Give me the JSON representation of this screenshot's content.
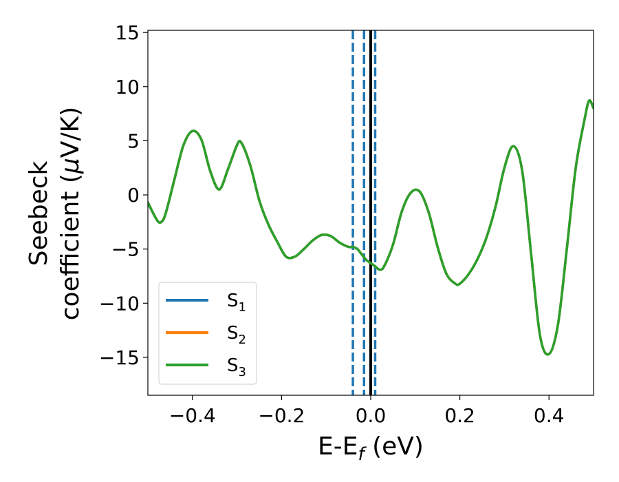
{
  "chart_data": {
    "type": "line",
    "xlabel": "E-E_f (eV)",
    "xlabel_main": "E-E",
    "xlabel_sub": "f",
    "xlabel_tail": " (eV)",
    "ylabel_line1": "Seebeck",
    "ylabel_line2_pre": "coefficient  (",
    "ylabel_mu": "μ",
    "ylabel_line2_post": "V/K)",
    "xlim": [
      -0.5,
      0.5
    ],
    "ylim": [
      -18.5,
      15.2
    ],
    "xticks": [
      -0.4,
      -0.2,
      0.0,
      0.2,
      0.4
    ],
    "xtick_labels": [
      "−0.4",
      "−0.2",
      "0.0",
      "0.2",
      "0.4"
    ],
    "yticks": [
      -15,
      -10,
      -5,
      0,
      5,
      10,
      15
    ],
    "ytick_labels": [
      "−15",
      "−10",
      "−5",
      "0",
      "5",
      "10",
      "15"
    ],
    "grid": false,
    "legend_position": "lower-left",
    "series": [
      {
        "name": "S1",
        "name_main": "S",
        "name_sub": "1",
        "color": "#1f77b4",
        "x": [
          -0.5,
          -0.48,
          -0.47,
          -0.46,
          -0.44,
          -0.42,
          -0.4,
          -0.38,
          -0.36,
          -0.34,
          -0.32,
          -0.3,
          -0.29,
          -0.27,
          -0.25,
          -0.23,
          -0.21,
          -0.19,
          -0.17,
          -0.15,
          -0.13,
          -0.11,
          -0.09,
          -0.07,
          -0.05,
          -0.04,
          -0.03,
          -0.02,
          -0.01,
          0.0,
          0.01,
          0.02,
          0.03,
          0.05,
          0.07,
          0.09,
          0.11,
          0.13,
          0.15,
          0.17,
          0.19,
          0.2,
          0.22,
          0.24,
          0.26,
          0.28,
          0.3,
          0.32,
          0.34,
          0.36,
          0.38,
          0.4,
          0.42,
          0.44,
          0.46,
          0.48,
          0.49,
          0.5
        ],
        "y": [
          -0.7,
          -2.3,
          -2.5,
          -1.7,
          1.5,
          4.6,
          5.9,
          5.1,
          2.2,
          0.5,
          2.4,
          4.6,
          4.8,
          2.7,
          -0.5,
          -2.7,
          -4.3,
          -5.7,
          -5.7,
          -5.0,
          -4.2,
          -3.7,
          -3.8,
          -4.4,
          -4.8,
          -4.8,
          -5.0,
          -5.5,
          -6.0,
          -6.3,
          -6.6,
          -6.9,
          -6.6,
          -4.6,
          -1.5,
          0.2,
          0.3,
          -1.6,
          -4.8,
          -7.3,
          -8.2,
          -8.2,
          -7.3,
          -5.9,
          -3.9,
          -1.1,
          2.5,
          4.5,
          2.2,
          -5.5,
          -13.0,
          -14.7,
          -12.0,
          -5.0,
          2.5,
          7.0,
          8.7,
          8.0
        ]
      },
      {
        "name": "S2",
        "name_main": "S",
        "name_sub": "2",
        "color": "#ff7f0e",
        "x": [
          -0.5,
          -0.48,
          -0.47,
          -0.46,
          -0.44,
          -0.42,
          -0.4,
          -0.38,
          -0.36,
          -0.34,
          -0.32,
          -0.3,
          -0.29,
          -0.27,
          -0.25,
          -0.23,
          -0.21,
          -0.19,
          -0.17,
          -0.15,
          -0.13,
          -0.11,
          -0.09,
          -0.07,
          -0.05,
          -0.04,
          -0.03,
          -0.02,
          -0.01,
          0.0,
          0.01,
          0.02,
          0.03,
          0.05,
          0.07,
          0.09,
          0.11,
          0.13,
          0.15,
          0.17,
          0.19,
          0.2,
          0.22,
          0.24,
          0.26,
          0.28,
          0.3,
          0.32,
          0.34,
          0.36,
          0.38,
          0.4,
          0.42,
          0.44,
          0.46,
          0.48,
          0.49,
          0.5
        ],
        "y": [
          -0.7,
          -2.3,
          -2.5,
          -1.7,
          1.5,
          4.6,
          5.9,
          5.1,
          2.2,
          0.5,
          2.4,
          4.6,
          4.8,
          2.7,
          -0.5,
          -2.7,
          -4.3,
          -5.7,
          -5.7,
          -5.0,
          -4.2,
          -3.7,
          -3.8,
          -4.4,
          -4.8,
          -4.8,
          -5.0,
          -5.5,
          -6.0,
          -6.3,
          -6.6,
          -6.9,
          -6.6,
          -4.6,
          -1.5,
          0.2,
          0.3,
          -1.6,
          -4.8,
          -7.3,
          -8.2,
          -8.2,
          -7.3,
          -5.9,
          -3.9,
          -1.1,
          2.5,
          4.5,
          2.2,
          -5.5,
          -13.0,
          -14.7,
          -12.0,
          -5.0,
          2.5,
          7.0,
          8.7,
          8.0
        ]
      },
      {
        "name": "S3",
        "name_main": "S",
        "name_sub": "3",
        "color": "#2ca02c",
        "x": [
          -0.5,
          -0.48,
          -0.47,
          -0.46,
          -0.44,
          -0.42,
          -0.4,
          -0.38,
          -0.36,
          -0.34,
          -0.32,
          -0.3,
          -0.29,
          -0.27,
          -0.25,
          -0.23,
          -0.21,
          -0.19,
          -0.17,
          -0.15,
          -0.13,
          -0.11,
          -0.09,
          -0.07,
          -0.05,
          -0.04,
          -0.03,
          -0.02,
          -0.01,
          0.0,
          0.01,
          0.02,
          0.03,
          0.05,
          0.07,
          0.09,
          0.11,
          0.13,
          0.15,
          0.17,
          0.19,
          0.2,
          0.22,
          0.24,
          0.26,
          0.28,
          0.3,
          0.32,
          0.34,
          0.36,
          0.38,
          0.4,
          0.42,
          0.44,
          0.46,
          0.48,
          0.49,
          0.5
        ],
        "y": [
          -0.7,
          -2.3,
          -2.5,
          -1.7,
          1.5,
          4.6,
          5.9,
          5.1,
          2.2,
          0.5,
          2.4,
          4.6,
          4.8,
          2.7,
          -0.5,
          -2.7,
          -4.3,
          -5.7,
          -5.7,
          -5.0,
          -4.2,
          -3.7,
          -3.8,
          -4.4,
          -4.8,
          -4.8,
          -5.0,
          -5.5,
          -6.0,
          -6.3,
          -6.6,
          -6.9,
          -6.6,
          -4.6,
          -1.5,
          0.2,
          0.3,
          -1.6,
          -4.8,
          -7.3,
          -8.2,
          -8.2,
          -7.3,
          -5.9,
          -3.9,
          -1.1,
          2.5,
          4.5,
          2.2,
          -5.5,
          -13.0,
          -14.7,
          -12.0,
          -5.0,
          2.5,
          7.0,
          8.7,
          8.0
        ]
      }
    ],
    "vlines": [
      {
        "x": -0.04,
        "style": "dashed",
        "color": "#1f77b4"
      },
      {
        "x": -0.015,
        "style": "dashed",
        "color": "#1f77b4"
      },
      {
        "x": 0.01,
        "style": "dashed",
        "color": "#1f77b4"
      },
      {
        "x": 0.0,
        "style": "solid",
        "color": "#000000"
      }
    ]
  }
}
